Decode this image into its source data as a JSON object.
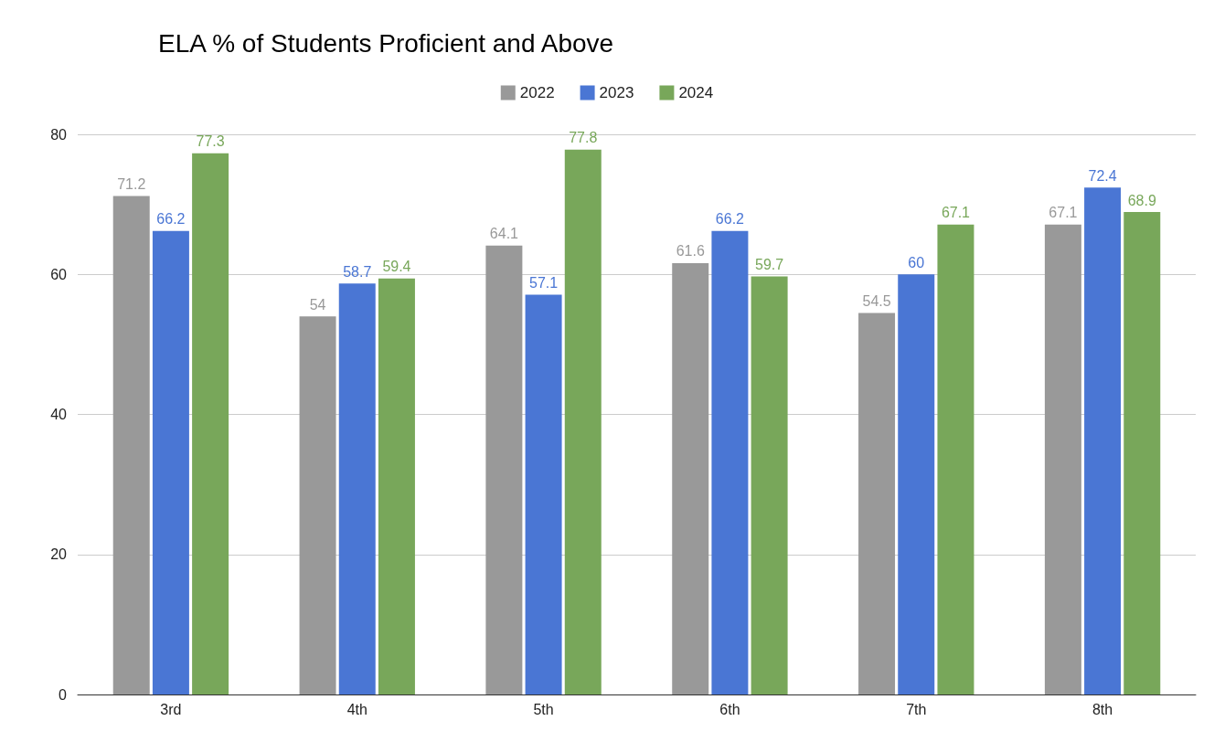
{
  "chart_data": {
    "type": "bar",
    "title": "ELA % of Students Proficient and Above",
    "categories": [
      "3rd",
      "4th",
      "5th",
      "6th",
      "7th",
      "8th"
    ],
    "series": [
      {
        "name": "2022",
        "color": "#999999",
        "values": [
          71.2,
          54,
          64.1,
          61.6,
          54.5,
          67.1
        ]
      },
      {
        "name": "2023",
        "color": "#4a76d4",
        "values": [
          66.2,
          58.7,
          57.1,
          66.2,
          60,
          72.4
        ]
      },
      {
        "name": "2024",
        "color": "#78a75a",
        "values": [
          77.3,
          59.4,
          77.8,
          59.7,
          67.1,
          68.9
        ]
      }
    ],
    "ylim": [
      0,
      80
    ],
    "yticks": [
      0,
      20,
      40,
      60,
      80
    ],
    "grid": "y",
    "legend": "top",
    "data_labels": true
  }
}
